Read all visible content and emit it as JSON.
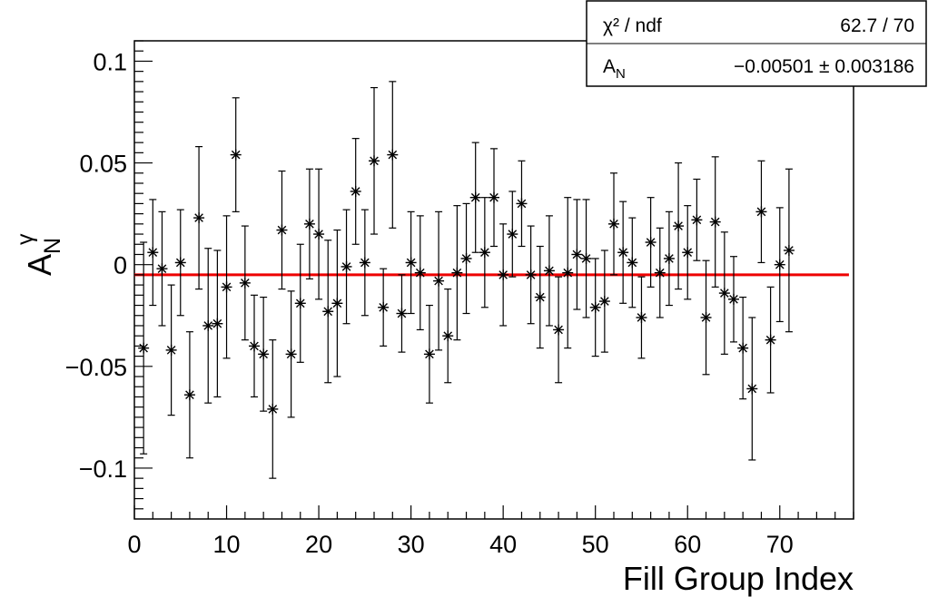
{
  "chart_data": {
    "type": "scatter",
    "title": "",
    "xlabel": "Fill Group Index",
    "ylabel": {
      "main": "A",
      "sup": "γ",
      "sub": "N"
    },
    "xlim": [
      0,
      78
    ],
    "ylim": [
      -0.125,
      0.11
    ],
    "x_ticks": [
      {
        "value": 0,
        "label": "0"
      },
      {
        "value": 10,
        "label": "10"
      },
      {
        "value": 20,
        "label": "20"
      },
      {
        "value": 30,
        "label": "30"
      },
      {
        "value": 40,
        "label": "40"
      },
      {
        "value": 50,
        "label": "50"
      },
      {
        "value": 60,
        "label": "60"
      },
      {
        "value": 70,
        "label": "70"
      }
    ],
    "y_ticks": [
      {
        "value": 0.1,
        "label": "0.1"
      },
      {
        "value": 0.05,
        "label": "0.05"
      },
      {
        "value": 0,
        "label": "0"
      },
      {
        "value": -0.05,
        "label": "−0.05"
      },
      {
        "value": -0.1,
        "label": "−0.1"
      }
    ],
    "grid": false,
    "marker": "asterisk",
    "marker_color": "#000000",
    "fit_color": "#ee0000",
    "points": [
      {
        "x": 1,
        "y": -0.041,
        "err": 0.052
      },
      {
        "x": 2,
        "y": 0.006,
        "err": 0.026
      },
      {
        "x": 3,
        "y": -0.002,
        "err": 0.028
      },
      {
        "x": 4,
        "y": -0.042,
        "err": 0.032
      },
      {
        "x": 5,
        "y": 0.001,
        "err": 0.026
      },
      {
        "x": 6,
        "y": -0.064,
        "err": 0.031
      },
      {
        "x": 7,
        "y": 0.023,
        "err": 0.035
      },
      {
        "x": 8,
        "y": -0.03,
        "err": 0.038
      },
      {
        "x": 9,
        "y": -0.029,
        "err": 0.036
      },
      {
        "x": 10,
        "y": -0.011,
        "err": 0.035
      },
      {
        "x": 11,
        "y": 0.054,
        "err": 0.028
      },
      {
        "x": 12,
        "y": -0.009,
        "err": 0.028
      },
      {
        "x": 13,
        "y": -0.04,
        "err": 0.025
      },
      {
        "x": 14,
        "y": -0.044,
        "err": 0.028
      },
      {
        "x": 15,
        "y": -0.071,
        "err": 0.034
      },
      {
        "x": 16,
        "y": 0.017,
        "err": 0.029
      },
      {
        "x": 17,
        "y": -0.044,
        "err": 0.031
      },
      {
        "x": 18,
        "y": -0.019,
        "err": 0.029
      },
      {
        "x": 19,
        "y": 0.02,
        "err": 0.027
      },
      {
        "x": 20,
        "y": 0.015,
        "err": 0.032
      },
      {
        "x": 21,
        "y": -0.023,
        "err": 0.035
      },
      {
        "x": 22,
        "y": -0.019,
        "err": 0.036
      },
      {
        "x": 23,
        "y": -0.001,
        "err": 0.028
      },
      {
        "x": 24,
        "y": 0.036,
        "err": 0.026
      },
      {
        "x": 25,
        "y": 0.001,
        "err": 0.026
      },
      {
        "x": 26,
        "y": 0.051,
        "err": 0.036
      },
      {
        "x": 27,
        "y": -0.021,
        "err": 0.019
      },
      {
        "x": 28,
        "y": 0.054,
        "err": 0.036
      },
      {
        "x": 29,
        "y": -0.024,
        "err": 0.019
      },
      {
        "x": 30,
        "y": 0.001,
        "err": 0.025
      },
      {
        "x": 31,
        "y": -0.004,
        "err": 0.028
      },
      {
        "x": 32,
        "y": -0.044,
        "err": 0.024
      },
      {
        "x": 33,
        "y": -0.008,
        "err": 0.034
      },
      {
        "x": 34,
        "y": -0.035,
        "err": 0.023
      },
      {
        "x": 35,
        "y": -0.004,
        "err": 0.033
      },
      {
        "x": 36,
        "y": 0.003,
        "err": 0.027
      },
      {
        "x": 37,
        "y": 0.033,
        "err": 0.027
      },
      {
        "x": 38,
        "y": 0.006,
        "err": 0.027
      },
      {
        "x": 39,
        "y": 0.033,
        "err": 0.024
      },
      {
        "x": 40,
        "y": -0.005,
        "err": 0.025
      },
      {
        "x": 41,
        "y": 0.015,
        "err": 0.021
      },
      {
        "x": 42,
        "y": 0.03,
        "err": 0.021
      },
      {
        "x": 43,
        "y": -0.005,
        "err": 0.024
      },
      {
        "x": 44,
        "y": -0.016,
        "err": 0.025
      },
      {
        "x": 45,
        "y": -0.003,
        "err": 0.027
      },
      {
        "x": 46,
        "y": -0.032,
        "err": 0.026
      },
      {
        "x": 47,
        "y": -0.004,
        "err": 0.037
      },
      {
        "x": 48,
        "y": 0.005,
        "err": 0.027
      },
      {
        "x": 49,
        "y": 0.003,
        "err": 0.029
      },
      {
        "x": 50,
        "y": -0.021,
        "err": 0.024
      },
      {
        "x": 51,
        "y": -0.018,
        "err": 0.025
      },
      {
        "x": 52,
        "y": 0.02,
        "err": 0.025
      },
      {
        "x": 53,
        "y": 0.006,
        "err": 0.025
      },
      {
        "x": 54,
        "y": 0.001,
        "err": 0.022
      },
      {
        "x": 55,
        "y": -0.026,
        "err": 0.02
      },
      {
        "x": 56,
        "y": 0.011,
        "err": 0.022
      },
      {
        "x": 57,
        "y": -0.004,
        "err": 0.022
      },
      {
        "x": 58,
        "y": 0.003,
        "err": 0.023
      },
      {
        "x": 59,
        "y": 0.019,
        "err": 0.031
      },
      {
        "x": 60,
        "y": 0.006,
        "err": 0.023
      },
      {
        "x": 61,
        "y": 0.022,
        "err": 0.02
      },
      {
        "x": 62,
        "y": -0.026,
        "err": 0.028
      },
      {
        "x": 63,
        "y": 0.021,
        "err": 0.032
      },
      {
        "x": 64,
        "y": -0.014,
        "err": 0.03
      },
      {
        "x": 65,
        "y": -0.017,
        "err": 0.021
      },
      {
        "x": 66,
        "y": -0.041,
        "err": 0.025
      },
      {
        "x": 67,
        "y": -0.061,
        "err": 0.035
      },
      {
        "x": 68,
        "y": 0.026,
        "err": 0.025
      },
      {
        "x": 69,
        "y": -0.037,
        "err": 0.026
      },
      {
        "x": 70,
        "y": 0.0,
        "err": 0.028
      },
      {
        "x": 71,
        "y": 0.007,
        "err": 0.04
      }
    ],
    "fit": {
      "value": -0.00501,
      "x_start": 0,
      "x_end": 77.5
    },
    "stats_box": {
      "placement": "top-right",
      "rows": [
        {
          "label": "χ² / ndf",
          "value": "62.7 / 70"
        },
        {
          "label": "A",
          "label_sub": "N",
          "value": "−0.00501 ± 0.003186"
        }
      ]
    }
  }
}
